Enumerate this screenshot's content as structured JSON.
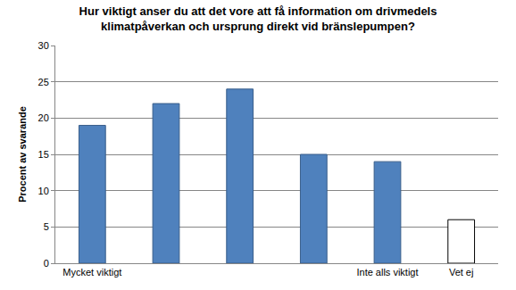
{
  "chart_data": {
    "type": "bar",
    "title": "Hur viktigt anser du att det vore att få information om drivmedels\nklimatpåverkan och ursprung direkt vid bränslepumpen?",
    "y_label": "Procent av svarande",
    "categories": [
      "Mycket viktigt",
      null,
      null,
      null,
      "Inte alls viktigt",
      "Vet ej"
    ],
    "values": [
      19,
      22,
      24,
      15,
      14,
      6
    ],
    "colors": [
      "#4f81bd",
      "#4f81bd",
      "#4f81bd",
      "#4f81bd",
      "#4f81bd",
      "#ffffff"
    ],
    "ylim": [
      0,
      30
    ],
    "yticks": [
      0,
      5,
      10,
      15,
      20,
      25,
      30
    ],
    "grid": true
  }
}
